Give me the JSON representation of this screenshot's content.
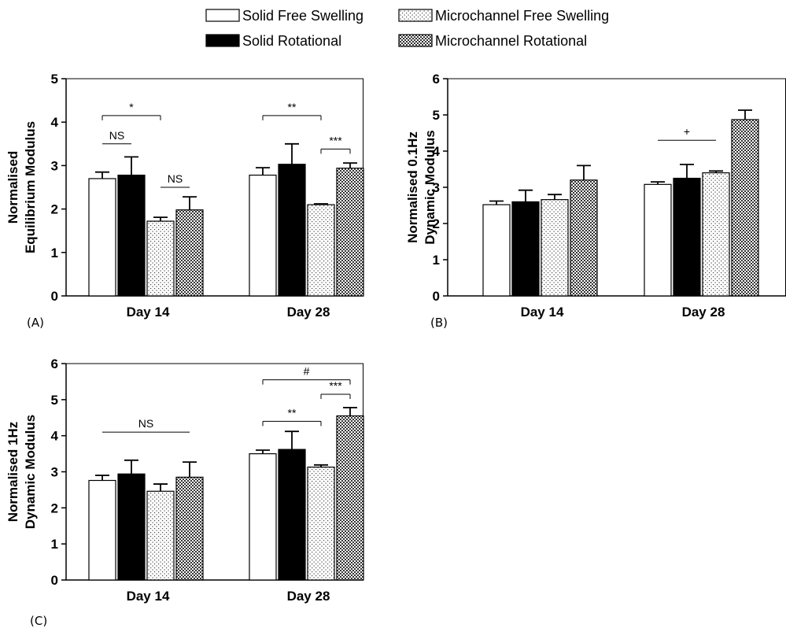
{
  "legend": [
    {
      "label": "Solid Free Swelling",
      "pattern": "white"
    },
    {
      "label": "Microchannel Free Swelling",
      "pattern": "dots"
    },
    {
      "label": "Solid Rotational",
      "pattern": "black"
    },
    {
      "label": "Microchannel Rotational",
      "pattern": "checker"
    }
  ],
  "chart_data": [
    {
      "type": "bar",
      "panel": "(A)",
      "ylabel": [
        "Normalised",
        "Equilibrium Modulus"
      ],
      "ylim": [
        0,
        5
      ],
      "yticks": [
        "0",
        "1",
        "2",
        "3",
        "4",
        "5"
      ],
      "categories": [
        "Day 14",
        "Day 28"
      ],
      "series": [
        {
          "name": "Solid Free Swelling",
          "values": [
            2.7,
            2.78
          ],
          "errors": [
            0.15,
            0.17
          ]
        },
        {
          "name": "Solid Rotational",
          "values": [
            2.78,
            3.03
          ],
          "errors": [
            0.42,
            0.47
          ]
        },
        {
          "name": "Microchannel Free Swelling",
          "values": [
            1.72,
            2.1
          ],
          "errors": [
            0.09,
            0.02
          ]
        },
        {
          "name": "Microchannel Rotational",
          "values": [
            1.98,
            2.94
          ],
          "errors": [
            0.3,
            0.12
          ]
        }
      ],
      "annotations": [
        {
          "text": "*",
          "cat": 0,
          "from": 0,
          "to": 2,
          "y": 4.15,
          "style": "bracket"
        },
        {
          "text": "NS",
          "cat": 0,
          "from": 0,
          "to": 1,
          "y": 3.5,
          "style": "line"
        },
        {
          "text": "NS",
          "cat": 0,
          "from": 2,
          "to": 3,
          "y": 2.5,
          "style": "line"
        },
        {
          "text": "**",
          "cat": 1,
          "from": 0,
          "to": 2,
          "y": 4.15,
          "style": "bracket"
        },
        {
          "text": "***",
          "cat": 1,
          "from": 2,
          "to": 3,
          "y": 3.38,
          "style": "bracket"
        }
      ]
    },
    {
      "type": "bar",
      "panel": "(B)",
      "ylabel": [
        "Normalised 0.1Hz",
        "Dynamic Modulus"
      ],
      "ylim": [
        0,
        6
      ],
      "yticks": [
        "0",
        "1",
        "2",
        "3",
        "4",
        "5",
        "6"
      ],
      "categories": [
        "Day 14",
        "Day 28"
      ],
      "series": [
        {
          "name": "Solid Free Swelling",
          "values": [
            2.52,
            3.08
          ],
          "errors": [
            0.1,
            0.07
          ]
        },
        {
          "name": "Solid Rotational",
          "values": [
            2.6,
            3.25
          ],
          "errors": [
            0.32,
            0.38
          ]
        },
        {
          "name": "Microchannel Free Swelling",
          "values": [
            2.66,
            3.4
          ],
          "errors": [
            0.14,
            0.05
          ]
        },
        {
          "name": "Microchannel Rotational",
          "values": [
            3.2,
            4.87
          ],
          "errors": [
            0.4,
            0.26
          ]
        }
      ],
      "annotations": [
        {
          "text": "+",
          "cat": 1,
          "from": 0,
          "to": 2,
          "y": 4.3,
          "style": "line"
        }
      ]
    },
    {
      "type": "bar",
      "panel": "(C)",
      "ylabel": [
        "Normalised 1Hz",
        "Dynamic Modulus"
      ],
      "ylim": [
        0,
        6
      ],
      "yticks": [
        "0",
        "1",
        "2",
        "3",
        "4",
        "5",
        "6"
      ],
      "categories": [
        "Day 14",
        "Day 28"
      ],
      "series": [
        {
          "name": "Solid Free Swelling",
          "values": [
            2.76,
            3.5
          ],
          "errors": [
            0.14,
            0.1
          ]
        },
        {
          "name": "Solid Rotational",
          "values": [
            2.94,
            3.62
          ],
          "errors": [
            0.38,
            0.5
          ]
        },
        {
          "name": "Microchannel Free Swelling",
          "values": [
            2.46,
            3.13
          ],
          "errors": [
            0.2,
            0.06
          ]
        },
        {
          "name": "Microchannel Rotational",
          "values": [
            2.85,
            4.55
          ],
          "errors": [
            0.42,
            0.23
          ]
        }
      ],
      "annotations": [
        {
          "text": "NS",
          "cat": 0,
          "from": 0,
          "to": 3,
          "y": 4.1,
          "style": "line",
          "span": "both"
        },
        {
          "text": "**",
          "cat": 1,
          "from": 0,
          "to": 2,
          "y": 4.4,
          "style": "bracket"
        },
        {
          "text": "***",
          "cat": 1,
          "from": 2,
          "to": 3,
          "y": 5.15,
          "style": "bracket"
        },
        {
          "text": "#",
          "cat": 1,
          "from": 0,
          "to": 3,
          "y": 5.55,
          "style": "bracket"
        }
      ]
    }
  ]
}
